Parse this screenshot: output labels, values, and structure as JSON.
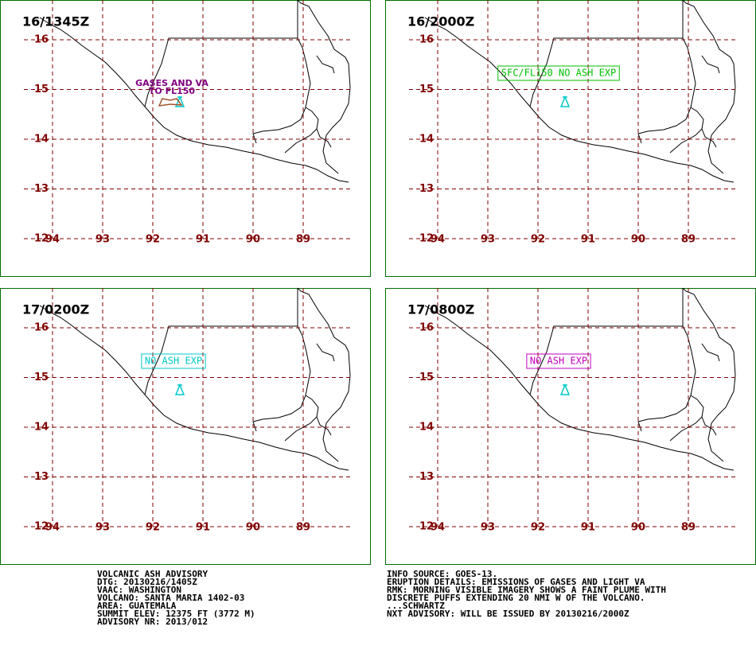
{
  "map": {
    "lat_ticks": [
      16,
      15,
      14,
      13,
      12
    ],
    "lon_ticks": [
      94,
      93,
      92,
      91,
      90,
      89
    ],
    "panels": [
      {
        "time": "16/1345Z",
        "label_lines": [
          "GASES AND VA",
          "TO FL150"
        ],
        "color": "#800080"
      },
      {
        "time": "16/2000Z",
        "label": "SFC/FL150 NO ASH EXP",
        "color": "#00c000"
      },
      {
        "time": "17/0200Z",
        "label": "NO ASH EXP",
        "color": "#00c8c8"
      },
      {
        "time": "17/0800Z",
        "label": "NO ASH EXP",
        "color": "#c000c0"
      }
    ]
  },
  "footer": {
    "left": [
      "VOLCANIC ASH ADVISORY",
      "DTG: 20130216/1405Z",
      "VAAC: WASHINGTON",
      "VOLCANO: SANTA MARIA 1402-03",
      "AREA: GUATEMALA",
      "SUMMIT ELEV: 12375 FT (3772 M)",
      "ADVISORY NR: 2013/012"
    ],
    "right": [
      "INFO SOURCE: GOES-13.",
      "ERUPTION DETAILS: EMISSIONS OF GASES AND LIGHT VA",
      "RMK: MORNING VISIBLE IMAGERY SHOWS A FAINT PLUME WITH",
      "DISCRETE PUFFS EXTENDING 20 NMI W OF THE VOLCANO.",
      "...SCHWARTZ",
      "NXT ADVISORY: WILL BE ISSUED BY 20130216/2000Z"
    ]
  }
}
